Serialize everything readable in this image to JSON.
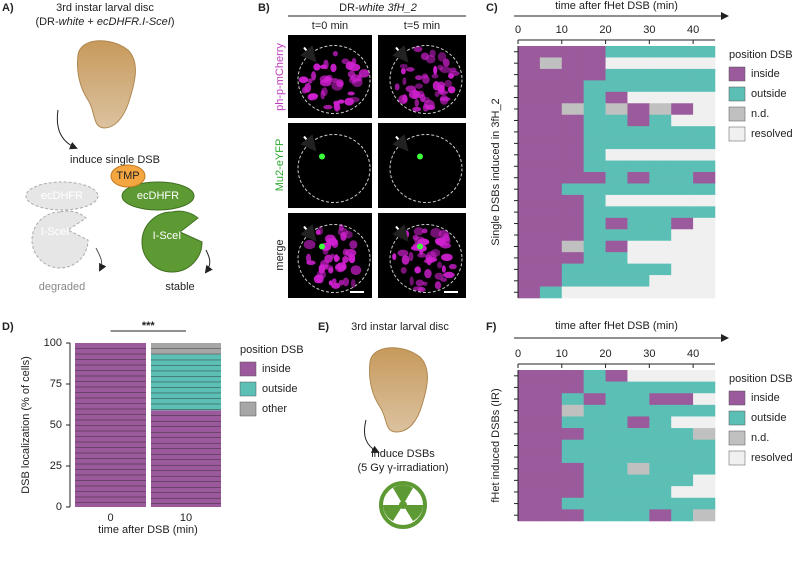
{
  "panels": {
    "a": {
      "letter": "A)",
      "title": "3rd instar larval disc",
      "subtitle": [
        "(DR-",
        "white",
        " + ",
        "ecDHFR.I-SceI",
        ")"
      ],
      "step": "induce single DSB",
      "tmp": "TMP",
      "enzyme_left": "ecDHFR",
      "nuclease_left": "I-SceI",
      "enzyme_right": "ecDHFR",
      "nuclease_right": "I-SceI",
      "fate_left": "degraded",
      "fate_right": "stable"
    },
    "b": {
      "letter": "B)",
      "title": [
        "DR-",
        "white 3fH_2"
      ],
      "columns": [
        "t=0 min",
        "t=5 min"
      ],
      "rows": [
        "ph-p-mCherry",
        "Mu2-eYFP",
        "merge"
      ]
    },
    "c": {
      "letter": "C)"
    },
    "d": {
      "letter": "D)"
    },
    "e": {
      "letter": "E)",
      "title": "3rd instar larval disc",
      "step": "induce DSBs",
      "detail": "(5 Gy γ-irradiation)"
    },
    "f": {
      "letter": "F)"
    }
  },
  "chart_data": [
    {
      "type": "heatmap",
      "xlabel": "time after fHet DSB (min)",
      "ylabel": "Single DSBs induced in 3fH_2",
      "xlim": [
        0,
        45
      ],
      "xticks": [
        0,
        10,
        20,
        30,
        40
      ],
      "legend_title": "position DSB",
      "series": [
        {
          "name": "inside",
          "color": "#9b5a9b"
        },
        {
          "name": "outside",
          "color": "#5cbfb5"
        },
        {
          "name": "n.d.",
          "color": "#c0c0c0"
        },
        {
          "name": "resolved",
          "color": "#f0f0f0"
        }
      ],
      "rows": [
        [
          "inside",
          "inside",
          "inside",
          "inside",
          "outside",
          "outside",
          "outside",
          "outside",
          "outside"
        ],
        [
          "inside",
          "n.d.",
          "inside",
          "inside",
          "resolved",
          "resolved",
          "resolved",
          "resolved",
          "resolved"
        ],
        [
          "inside",
          "inside",
          "inside",
          "inside",
          "outside",
          "outside",
          "outside",
          "outside",
          "outside"
        ],
        [
          "inside",
          "inside",
          "inside",
          "outside",
          "outside",
          "outside",
          "outside",
          "outside",
          "outside"
        ],
        [
          "inside",
          "inside",
          "inside",
          "outside",
          "inside",
          "resolved",
          "resolved",
          "resolved",
          "resolved"
        ],
        [
          "inside",
          "inside",
          "n.d.",
          "outside",
          "n.d.",
          "inside",
          "n.d.",
          "inside",
          "resolved"
        ],
        [
          "inside",
          "inside",
          "inside",
          "outside",
          "outside",
          "inside",
          "outside",
          "resolved",
          "resolved"
        ],
        [
          "inside",
          "inside",
          "inside",
          "outside",
          "outside",
          "outside",
          "outside",
          "outside",
          "outside"
        ],
        [
          "inside",
          "inside",
          "inside",
          "outside",
          "outside",
          "outside",
          "outside",
          "outside",
          "outside"
        ],
        [
          "inside",
          "inside",
          "inside",
          "outside",
          "resolved",
          "resolved",
          "resolved",
          "resolved",
          "resolved"
        ],
        [
          "inside",
          "inside",
          "inside",
          "outside",
          "outside",
          "outside",
          "outside",
          "outside",
          "outside"
        ],
        [
          "inside",
          "inside",
          "inside",
          "inside",
          "outside",
          "inside",
          "outside",
          "outside",
          "inside"
        ],
        [
          "inside",
          "inside",
          "outside",
          "outside",
          "outside",
          "outside",
          "outside",
          "outside",
          "outside"
        ],
        [
          "inside",
          "inside",
          "inside",
          "outside",
          "resolved",
          "resolved",
          "resolved",
          "resolved",
          "resolved"
        ],
        [
          "inside",
          "inside",
          "inside",
          "outside",
          "outside",
          "outside",
          "outside",
          "outside",
          "outside"
        ],
        [
          "inside",
          "inside",
          "inside",
          "outside",
          "inside",
          "outside",
          "outside",
          "inside",
          "resolved"
        ],
        [
          "inside",
          "inside",
          "inside",
          "outside",
          "outside",
          "outside",
          "outside",
          "resolved",
          "resolved"
        ],
        [
          "inside",
          "inside",
          "n.d.",
          "outside",
          "inside",
          "resolved",
          "resolved",
          "resolved",
          "resolved"
        ],
        [
          "inside",
          "inside",
          "inside",
          "outside",
          "outside",
          "resolved",
          "resolved",
          "resolved",
          "resolved"
        ],
        [
          "inside",
          "inside",
          "outside",
          "outside",
          "outside",
          "outside",
          "outside",
          "resolved",
          "resolved"
        ],
        [
          "inside",
          "inside",
          "outside",
          "outside",
          "outside",
          "outside",
          "resolved",
          "resolved",
          "resolved"
        ],
        [
          "inside",
          "outside",
          "resolved",
          "resolved",
          "resolved",
          "resolved",
          "resolved",
          "resolved",
          "resolved"
        ]
      ]
    },
    {
      "type": "bar",
      "ylabel": "DSB localization (% of cells)",
      "xlabel": "time after DSB (min)",
      "annotation": "***",
      "categories": [
        "0",
        "10"
      ],
      "ylim": [
        0,
        100
      ],
      "yticks": [
        0,
        25,
        50,
        75,
        100
      ],
      "legend_title": "position DSB",
      "series": [
        {
          "name": "inside",
          "color": "#9b5a9b",
          "values": [
            100,
            59
          ]
        },
        {
          "name": "outside",
          "color": "#5cbfb5",
          "values": [
            0,
            34
          ]
        },
        {
          "name": "other",
          "color": "#a6a6a6",
          "values": [
            0,
            7
          ]
        }
      ]
    },
    {
      "type": "heatmap",
      "xlabel": "time after fHet DSB (min)",
      "ylabel": "fHet induced DSBs (IR)",
      "xlim": [
        0,
        45
      ],
      "xticks": [
        0,
        10,
        20,
        30,
        40
      ],
      "legend_title": "position DSB",
      "series": [
        {
          "name": "inside",
          "color": "#9b5a9b"
        },
        {
          "name": "outside",
          "color": "#5cbfb5"
        },
        {
          "name": "n.d.",
          "color": "#c0c0c0"
        },
        {
          "name": "resolved",
          "color": "#f0f0f0"
        }
      ],
      "rows": [
        [
          "inside",
          "inside",
          "inside",
          "outside",
          "inside",
          "resolved",
          "resolved",
          "resolved",
          "resolved"
        ],
        [
          "inside",
          "inside",
          "inside",
          "outside",
          "outside",
          "outside",
          "outside",
          "outside",
          "outside"
        ],
        [
          "inside",
          "inside",
          "outside",
          "inside",
          "outside",
          "outside",
          "inside",
          "inside",
          "resolved"
        ],
        [
          "inside",
          "inside",
          "n.d.",
          "outside",
          "outside",
          "outside",
          "outside",
          "outside",
          "outside"
        ],
        [
          "inside",
          "inside",
          "outside",
          "outside",
          "outside",
          "inside",
          "outside",
          "resolved",
          "resolved"
        ],
        [
          "inside",
          "inside",
          "inside",
          "outside",
          "outside",
          "outside",
          "outside",
          "outside",
          "n.d."
        ],
        [
          "inside",
          "inside",
          "outside",
          "outside",
          "outside",
          "outside",
          "outside",
          "outside",
          "outside"
        ],
        [
          "inside",
          "inside",
          "outside",
          "outside",
          "outside",
          "outside",
          "outside",
          "outside",
          "outside"
        ],
        [
          "inside",
          "inside",
          "inside",
          "outside",
          "outside",
          "n.d.",
          "outside",
          "outside",
          "outside"
        ],
        [
          "inside",
          "inside",
          "inside",
          "outside",
          "outside",
          "outside",
          "outside",
          "outside",
          "resolved"
        ],
        [
          "inside",
          "inside",
          "inside",
          "outside",
          "outside",
          "outside",
          "outside",
          "resolved",
          "resolved"
        ],
        [
          "inside",
          "inside",
          "outside",
          "outside",
          "outside",
          "outside",
          "outside",
          "outside",
          "outside"
        ],
        [
          "inside",
          "inside",
          "inside",
          "outside",
          "outside",
          "outside",
          "inside",
          "outside",
          "n.d."
        ]
      ]
    }
  ]
}
